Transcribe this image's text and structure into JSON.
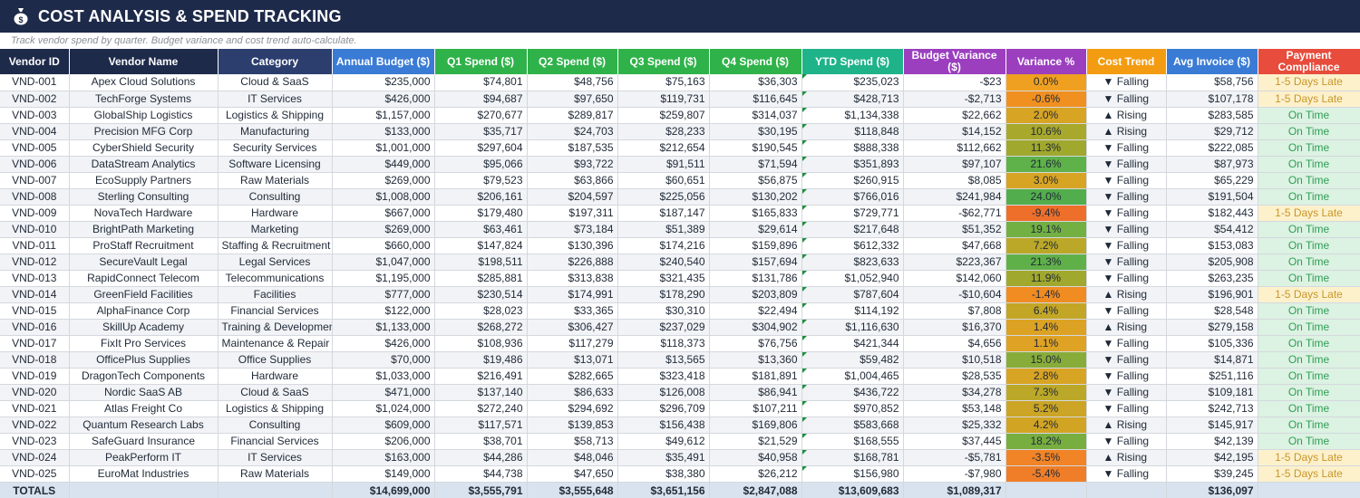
{
  "header": {
    "title": "COST ANALYSIS & SPEND TRACKING",
    "icon": "money-bag-icon",
    "subtitle": "Track vendor spend by quarter. Budget variance and cost trend auto-calculate."
  },
  "columns": [
    {
      "label": "Vendor ID",
      "color": "#1e2a4a"
    },
    {
      "label": "Vendor Name",
      "color": "#1e2a4a"
    },
    {
      "label": "Category",
      "color": "#2c3e6e"
    },
    {
      "label": "Annual Budget ($)",
      "color": "#3a7bd5"
    },
    {
      "label": "Q1 Spend ($)",
      "color": "#2fb24a"
    },
    {
      "label": "Q2 Spend ($)",
      "color": "#2fb24a"
    },
    {
      "label": "Q3 Spend ($)",
      "color": "#2fb24a"
    },
    {
      "label": "Q4 Spend ($)",
      "color": "#2fb24a"
    },
    {
      "label": "YTD Spend ($)",
      "color": "#1fb38a"
    },
    {
      "label": "Budget Variance ($)",
      "color": "#9b3fbf"
    },
    {
      "label": "Variance %",
      "color": "#9b3fbf"
    },
    {
      "label": "Cost Trend",
      "color": "#f39c12"
    },
    {
      "label": "Avg Invoice ($)",
      "color": "#3a7bd5"
    },
    {
      "label": "Payment Compliance",
      "color": "#e74c3c"
    }
  ],
  "rows": [
    {
      "id": "VND-001",
      "name": "Apex Cloud Solutions",
      "category": "Cloud & SaaS",
      "budget": "$235,000",
      "q1": "$74,801",
      "q2": "$48,756",
      "q3": "$75,163",
      "q4": "$36,303",
      "ytd": "$235,023",
      "variance": "-$23",
      "variance_pct": "0.0%",
      "variance_color": "#f0a020",
      "trend": "▼ Falling",
      "avg_invoice": "$58,756",
      "payment": "1-5 Days Late",
      "payment_status": "late"
    },
    {
      "id": "VND-002",
      "name": "TechForge Systems",
      "category": "IT Services",
      "budget": "$426,000",
      "q1": "$94,687",
      "q2": "$97,650",
      "q3": "$119,731",
      "q4": "$116,645",
      "ytd": "$428,713",
      "variance": "-$2,713",
      "variance_pct": "-0.6%",
      "variance_color": "#f09020",
      "trend": "▼ Falling",
      "avg_invoice": "$107,178",
      "payment": "1-5 Days Late",
      "payment_status": "late"
    },
    {
      "id": "VND-003",
      "name": "GlobalShip Logistics",
      "category": "Logistics & Shipping",
      "budget": "$1,157,000",
      "q1": "$270,677",
      "q2": "$289,817",
      "q3": "$259,807",
      "q4": "$314,037",
      "ytd": "$1,134,338",
      "variance": "$22,662",
      "variance_pct": "2.0%",
      "variance_color": "#d8a423",
      "trend": "▲ Rising",
      "avg_invoice": "$283,585",
      "payment": "On Time",
      "payment_status": "ok"
    },
    {
      "id": "VND-004",
      "name": "Precision MFG Corp",
      "category": "Manufacturing",
      "budget": "$133,000",
      "q1": "$35,717",
      "q2": "$24,703",
      "q3": "$28,233",
      "q4": "$30,195",
      "ytd": "$118,848",
      "variance": "$14,152",
      "variance_pct": "10.6%",
      "variance_color": "#a8a82c",
      "trend": "▲ Rising",
      "avg_invoice": "$29,712",
      "payment": "On Time",
      "payment_status": "ok"
    },
    {
      "id": "VND-005",
      "name": "CyberShield Security",
      "category": "Security Services",
      "budget": "$1,001,000",
      "q1": "$297,604",
      "q2": "$187,535",
      "q3": "$212,654",
      "q4": "$190,545",
      "ytd": "$888,338",
      "variance": "$112,662",
      "variance_pct": "11.3%",
      "variance_color": "#a0a82e",
      "trend": "▼ Falling",
      "avg_invoice": "$222,085",
      "payment": "On Time",
      "payment_status": "ok"
    },
    {
      "id": "VND-006",
      "name": "DataStream Analytics",
      "category": "Software Licensing",
      "budget": "$449,000",
      "q1": "$95,066",
      "q2": "$93,722",
      "q3": "$91,511",
      "q4": "$71,594",
      "ytd": "$351,893",
      "variance": "$97,107",
      "variance_pct": "21.6%",
      "variance_color": "#5fb14a",
      "trend": "▼ Falling",
      "avg_invoice": "$87,973",
      "payment": "On Time",
      "payment_status": "ok"
    },
    {
      "id": "VND-007",
      "name": "EcoSupply Partners",
      "category": "Raw Materials",
      "budget": "$269,000",
      "q1": "$79,523",
      "q2": "$63,866",
      "q3": "$60,651",
      "q4": "$56,875",
      "ytd": "$260,915",
      "variance": "$8,085",
      "variance_pct": "3.0%",
      "variance_color": "#d8a423",
      "trend": "▼ Falling",
      "avg_invoice": "$65,229",
      "payment": "On Time",
      "payment_status": "ok"
    },
    {
      "id": "VND-008",
      "name": "Sterling Consulting",
      "category": "Consulting",
      "budget": "$1,008,000",
      "q1": "$206,161",
      "q2": "$204,597",
      "q3": "$225,056",
      "q4": "$130,202",
      "ytd": "$766,016",
      "variance": "$241,984",
      "variance_pct": "24.0%",
      "variance_color": "#52ae4c",
      "trend": "▼ Falling",
      "avg_invoice": "$191,504",
      "payment": "On Time",
      "payment_status": "ok"
    },
    {
      "id": "VND-009",
      "name": "NovaTech Hardware",
      "category": "Hardware",
      "budget": "$667,000",
      "q1": "$179,480",
      "q2": "$197,311",
      "q3": "$187,147",
      "q4": "$165,833",
      "ytd": "$729,771",
      "variance": "-$62,771",
      "variance_pct": "-9.4%",
      "variance_color": "#ee6f2a",
      "trend": "▼ Falling",
      "avg_invoice": "$182,443",
      "payment": "1-5 Days Late",
      "payment_status": "late"
    },
    {
      "id": "VND-010",
      "name": "BrightPath Marketing",
      "category": "Marketing",
      "budget": "$269,000",
      "q1": "$63,461",
      "q2": "$73,184",
      "q3": "$51,389",
      "q4": "$29,614",
      "ytd": "$217,648",
      "variance": "$51,352",
      "variance_pct": "19.1%",
      "variance_color": "#72b044",
      "trend": "▼ Falling",
      "avg_invoice": "$54,412",
      "payment": "On Time",
      "payment_status": "ok"
    },
    {
      "id": "VND-011",
      "name": "ProStaff Recruitment",
      "category": "Staffing & Recruitment",
      "budget": "$660,000",
      "q1": "$147,824",
      "q2": "$130,396",
      "q3": "$174,216",
      "q4": "$159,896",
      "ytd": "$612,332",
      "variance": "$47,668",
      "variance_pct": "7.2%",
      "variance_color": "#bba828",
      "trend": "▼ Falling",
      "avg_invoice": "$153,083",
      "payment": "On Time",
      "payment_status": "ok"
    },
    {
      "id": "VND-012",
      "name": "SecureVault Legal",
      "category": "Legal Services",
      "budget": "$1,047,000",
      "q1": "$198,511",
      "q2": "$226,888",
      "q3": "$240,540",
      "q4": "$157,694",
      "ytd": "$823,633",
      "variance": "$223,367",
      "variance_pct": "21.3%",
      "variance_color": "#60b04a",
      "trend": "▼ Falling",
      "avg_invoice": "$205,908",
      "payment": "On Time",
      "payment_status": "ok"
    },
    {
      "id": "VND-013",
      "name": "RapidConnect Telecom",
      "category": "Telecommunications",
      "budget": "$1,195,000",
      "q1": "$285,881",
      "q2": "$313,838",
      "q3": "$321,435",
      "q4": "$131,786",
      "ytd": "$1,052,940",
      "variance": "$142,060",
      "variance_pct": "11.9%",
      "variance_color": "#a0a82e",
      "trend": "▼ Falling",
      "avg_invoice": "$263,235",
      "payment": "On Time",
      "payment_status": "ok"
    },
    {
      "id": "VND-014",
      "name": "GreenField Facilities",
      "category": "Facilities",
      "budget": "$777,000",
      "q1": "$230,514",
      "q2": "$174,991",
      "q3": "$178,290",
      "q4": "$203,809",
      "ytd": "$787,604",
      "variance": "-$10,604",
      "variance_pct": "-1.4%",
      "variance_color": "#f08c22",
      "trend": "▲ Rising",
      "avg_invoice": "$196,901",
      "payment": "1-5 Days Late",
      "payment_status": "late"
    },
    {
      "id": "VND-015",
      "name": "AlphaFinance Corp",
      "category": "Financial Services",
      "budget": "$122,000",
      "q1": "$28,023",
      "q2": "$33,365",
      "q3": "$30,310",
      "q4": "$22,494",
      "ytd": "$114,192",
      "variance": "$7,808",
      "variance_pct": "6.4%",
      "variance_color": "#c4a626",
      "trend": "▼ Falling",
      "avg_invoice": "$28,548",
      "payment": "On Time",
      "payment_status": "ok"
    },
    {
      "id": "VND-016",
      "name": "SkillUp Academy",
      "category": "Training & Development",
      "budget": "$1,133,000",
      "q1": "$268,272",
      "q2": "$306,427",
      "q3": "$237,029",
      "q4": "$304,902",
      "ytd": "$1,116,630",
      "variance": "$16,370",
      "variance_pct": "1.4%",
      "variance_color": "#dca224",
      "trend": "▲ Rising",
      "avg_invoice": "$279,158",
      "payment": "On Time",
      "payment_status": "ok"
    },
    {
      "id": "VND-017",
      "name": "FixIt Pro Services",
      "category": "Maintenance & Repair",
      "budget": "$426,000",
      "q1": "$108,936",
      "q2": "$117,279",
      "q3": "$118,373",
      "q4": "$76,756",
      "ytd": "$421,344",
      "variance": "$4,656",
      "variance_pct": "1.1%",
      "variance_color": "#dea224",
      "trend": "▼ Falling",
      "avg_invoice": "$105,336",
      "payment": "On Time",
      "payment_status": "ok"
    },
    {
      "id": "VND-018",
      "name": "OfficePlus Supplies",
      "category": "Office Supplies",
      "budget": "$70,000",
      "q1": "$19,486",
      "q2": "$13,071",
      "q3": "$13,565",
      "q4": "$13,360",
      "ytd": "$59,482",
      "variance": "$10,518",
      "variance_pct": "15.0%",
      "variance_color": "#88ac3a",
      "trend": "▼ Falling",
      "avg_invoice": "$14,871",
      "payment": "On Time",
      "payment_status": "ok"
    },
    {
      "id": "VND-019",
      "name": "DragonTech Components",
      "category": "Hardware",
      "budget": "$1,033,000",
      "q1": "$216,491",
      "q2": "$282,665",
      "q3": "$323,418",
      "q4": "$181,891",
      "ytd": "$1,004,465",
      "variance": "$28,535",
      "variance_pct": "2.8%",
      "variance_color": "#d8a423",
      "trend": "▼ Falling",
      "avg_invoice": "$251,116",
      "payment": "On Time",
      "payment_status": "ok"
    },
    {
      "id": "VND-020",
      "name": "Nordic SaaS AB",
      "category": "Cloud & SaaS",
      "budget": "$471,000",
      "q1": "$137,140",
      "q2": "$86,633",
      "q3": "$126,008",
      "q4": "$86,941",
      "ytd": "$436,722",
      "variance": "$34,278",
      "variance_pct": "7.3%",
      "variance_color": "#bba828",
      "trend": "▼ Falling",
      "avg_invoice": "$109,181",
      "payment": "On Time",
      "payment_status": "ok"
    },
    {
      "id": "VND-021",
      "name": "Atlas Freight Co",
      "category": "Logistics & Shipping",
      "budget": "$1,024,000",
      "q1": "$272,240",
      "q2": "$294,692",
      "q3": "$296,709",
      "q4": "$107,211",
      "ytd": "$970,852",
      "variance": "$53,148",
      "variance_pct": "5.2%",
      "variance_color": "#cca526",
      "trend": "▼ Falling",
      "avg_invoice": "$242,713",
      "payment": "On Time",
      "payment_status": "ok"
    },
    {
      "id": "VND-022",
      "name": "Quantum Research Labs",
      "category": "Consulting",
      "budget": "$609,000",
      "q1": "$117,571",
      "q2": "$139,853",
      "q3": "$156,438",
      "q4": "$169,806",
      "ytd": "$583,668",
      "variance": "$25,332",
      "variance_pct": "4.2%",
      "variance_color": "#d2a424",
      "trend": "▲ Rising",
      "avg_invoice": "$145,917",
      "payment": "On Time",
      "payment_status": "ok"
    },
    {
      "id": "VND-023",
      "name": "SafeGuard Insurance",
      "category": "Financial Services",
      "budget": "$206,000",
      "q1": "$38,701",
      "q2": "$58,713",
      "q3": "$49,612",
      "q4": "$21,529",
      "ytd": "$168,555",
      "variance": "$37,445",
      "variance_pct": "18.2%",
      "variance_color": "#78ae40",
      "trend": "▼ Falling",
      "avg_invoice": "$42,139",
      "payment": "On Time",
      "payment_status": "ok"
    },
    {
      "id": "VND-024",
      "name": "PeakPerform IT",
      "category": "IT Services",
      "budget": "$163,000",
      "q1": "$44,286",
      "q2": "$48,046",
      "q3": "$35,491",
      "q4": "$40,958",
      "ytd": "$168,781",
      "variance": "-$5,781",
      "variance_pct": "-3.5%",
      "variance_color": "#f08426",
      "trend": "▲ Rising",
      "avg_invoice": "$42,195",
      "payment": "1-5 Days Late",
      "payment_status": "late"
    },
    {
      "id": "VND-025",
      "name": "EuroMat Industries",
      "category": "Raw Materials",
      "budget": "$149,000",
      "q1": "$44,738",
      "q2": "$47,650",
      "q3": "$38,380",
      "q4": "$26,212",
      "ytd": "$156,980",
      "variance": "-$7,980",
      "variance_pct": "-5.4%",
      "variance_color": "#f07e28",
      "trend": "▼ Falling",
      "avg_invoice": "$39,245",
      "payment": "1-5 Days Late",
      "payment_status": "late"
    }
  ],
  "totals": {
    "label": "TOTALS",
    "budget": "$14,699,000",
    "q1": "$3,555,791",
    "q2": "$3,555,648",
    "q3": "$3,651,156",
    "q4": "$2,847,088",
    "ytd": "$13,609,683",
    "variance": "$1,089,317",
    "avg_invoice": "$136,097"
  }
}
